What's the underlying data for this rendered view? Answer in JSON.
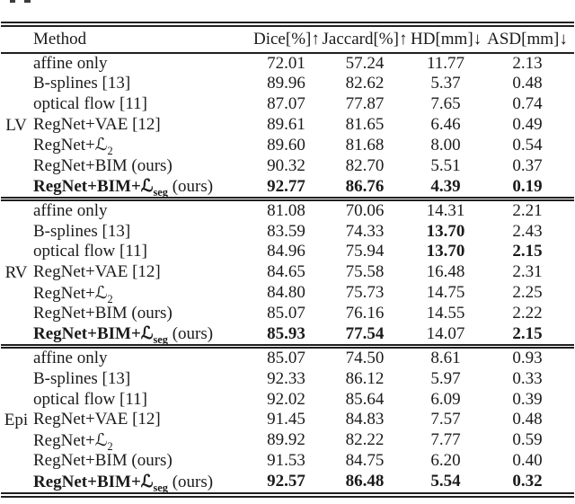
{
  "table": {
    "columns": [
      "Method",
      "Dice[%]↑",
      "Jaccard[%]↑",
      "HD[mm]↓",
      "ASD[mm]↓"
    ],
    "groups": [
      {
        "label": "LV",
        "rows": [
          {
            "method": "affine only",
            "values": [
              "72.01",
              "57.24",
              "11.77",
              "2.13"
            ]
          },
          {
            "method": "B-splines [13]",
            "values": [
              "89.96",
              "82.62",
              "5.37",
              "0.48"
            ]
          },
          {
            "method": "optical flow [11]",
            "values": [
              "87.07",
              "77.87",
              "7.65",
              "0.74"
            ]
          },
          {
            "method": "RegNet+VAE [12]",
            "values": [
              "89.61",
              "81.65",
              "6.46",
              "0.49"
            ]
          },
          {
            "method": "RegNet+ℒ",
            "method_sub": "2",
            "values": [
              "89.60",
              "81.68",
              "8.00",
              "0.54"
            ]
          },
          {
            "method": "RegNet+BIM (ours)",
            "values": [
              "90.32",
              "82.70",
              "5.51",
              "0.37"
            ]
          },
          {
            "method": "RegNet+BIM+ℒ",
            "method_sub": "seg",
            "method_suffix": " (ours)",
            "bold_method": true,
            "values": [
              "92.77",
              "86.76",
              "4.39",
              "0.19"
            ],
            "bold_values": [
              true,
              true,
              true,
              true
            ]
          }
        ]
      },
      {
        "label": "RV",
        "rows": [
          {
            "method": "affine only",
            "values": [
              "81.08",
              "70.06",
              "14.31",
              "2.21"
            ]
          },
          {
            "method": "B-splines [13]",
            "values": [
              "83.59",
              "74.33",
              "13.70",
              "2.43"
            ],
            "bold_values": [
              false,
              false,
              true,
              false
            ]
          },
          {
            "method": "optical flow [11]",
            "values": [
              "84.96",
              "75.94",
              "13.70",
              "2.15"
            ],
            "bold_values": [
              false,
              false,
              true,
              true
            ]
          },
          {
            "method": "RegNet+VAE [12]",
            "values": [
              "84.65",
              "75.58",
              "16.48",
              "2.31"
            ]
          },
          {
            "method": "RegNet+ℒ",
            "method_sub": "2",
            "values": [
              "84.80",
              "75.73",
              "14.75",
              "2.25"
            ]
          },
          {
            "method": "RegNet+BIM (ours)",
            "values": [
              "85.07",
              "76.16",
              "14.55",
              "2.22"
            ]
          },
          {
            "method": "RegNet+BIM+ℒ",
            "method_sub": "seg",
            "method_suffix": " (ours)",
            "bold_method": true,
            "values": [
              "85.93",
              "77.54",
              "14.07",
              "2.15"
            ],
            "bold_values": [
              true,
              true,
              false,
              true
            ]
          }
        ]
      },
      {
        "label": "Epi",
        "rows": [
          {
            "method": "affine only",
            "values": [
              "85.07",
              "74.50",
              "8.61",
              "0.93"
            ]
          },
          {
            "method": "B-splines [13]",
            "values": [
              "92.33",
              "86.12",
              "5.97",
              "0.33"
            ]
          },
          {
            "method": "optical flow [11]",
            "values": [
              "92.02",
              "85.64",
              "6.09",
              "0.39"
            ]
          },
          {
            "method": "RegNet+VAE [12]",
            "values": [
              "91.45",
              "84.83",
              "7.57",
              "0.48"
            ]
          },
          {
            "method": "RegNet+ℒ",
            "method_sub": "2",
            "values": [
              "89.92",
              "82.22",
              "7.77",
              "0.59"
            ]
          },
          {
            "method": "RegNet+BIM (ours)",
            "values": [
              "91.53",
              "84.75",
              "6.20",
              "0.40"
            ]
          },
          {
            "method": "RegNet+BIM+ℒ",
            "method_sub": "seg",
            "method_suffix": " (ours)",
            "bold_method": true,
            "values": [
              "92.57",
              "86.48",
              "5.54",
              "0.32"
            ],
            "bold_values": [
              true,
              true,
              true,
              true
            ]
          }
        ]
      }
    ]
  }
}
